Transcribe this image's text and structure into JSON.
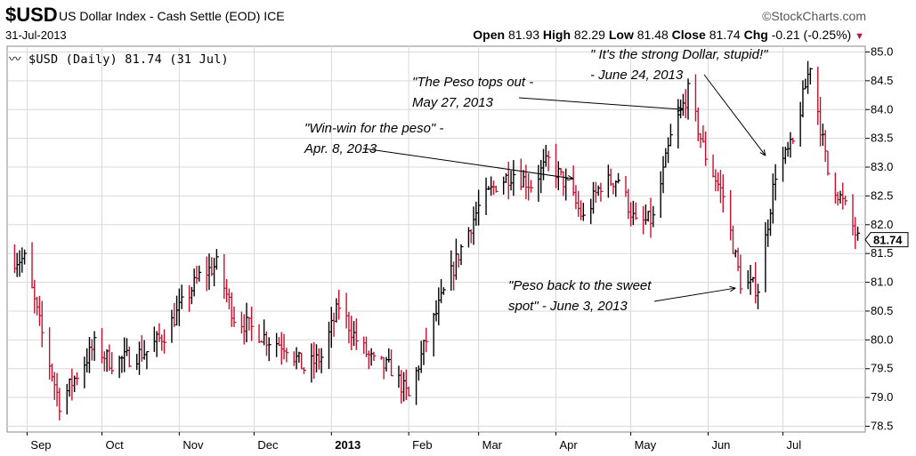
{
  "header": {
    "symbol": "$USD",
    "instrument": "US Dollar Index - Cash Settle (EOD)",
    "exchange": "ICE",
    "brand": "©StockCharts.com",
    "date": "31-Jul-2013",
    "open_label": "Open",
    "open": "81.93",
    "high_label": "High",
    "high": "82.29",
    "low_label": "Low",
    "low": "81.48",
    "close_label": "Close",
    "close": "81.74",
    "chg_label": "Chg",
    "chg": "-0.21 (-0.25%)"
  },
  "legend": "$USD (Daily) 81.74 (31 Jul)",
  "colors": {
    "up": "#000000",
    "down": "#c8102e",
    "grid": "#d9d9d9",
    "last_box": "#ffffff"
  },
  "chart_data": {
    "type": "line",
    "subtype": "hlc-bars",
    "ylim": [
      78.4,
      85.1
    ],
    "y_ticks": [
      "78.5",
      "79.0",
      "79.5",
      "80.0",
      "80.5",
      "81.0",
      "81.5",
      "82.0",
      "82.5",
      "83.0",
      "83.5",
      "84.0",
      "84.5",
      "85.0"
    ],
    "x_ticks": [
      "Sep",
      "Oct",
      "Nov",
      "Dec",
      "2013",
      "Feb",
      "Mar",
      "Apr",
      "May",
      "Jun",
      "Jul"
    ],
    "last_value": "81.74",
    "grid": true,
    "series": [
      {
        "name": "$USD",
        "x": [
          "2012-08-31",
          "2012-09-07",
          "2012-09-14",
          "2012-09-21",
          "2012-09-28",
          "2012-10-05",
          "2012-10-12",
          "2012-10-19",
          "2012-10-26",
          "2012-11-02",
          "2012-11-09",
          "2012-11-16",
          "2012-11-23",
          "2012-11-30",
          "2012-12-07",
          "2012-12-14",
          "2012-12-21",
          "2012-12-28",
          "2013-01-04",
          "2013-01-11",
          "2013-01-18",
          "2013-01-25",
          "2013-02-01",
          "2013-02-08",
          "2013-02-15",
          "2013-02-22",
          "2013-03-01",
          "2013-03-08",
          "2013-03-15",
          "2013-03-22",
          "2013-03-29",
          "2013-04-05",
          "2013-04-12",
          "2013-04-19",
          "2013-04-26",
          "2013-05-03",
          "2013-05-10",
          "2013-05-17",
          "2013-05-24",
          "2013-05-31",
          "2013-06-07",
          "2013-06-14",
          "2013-06-21",
          "2013-06-28",
          "2013-07-05",
          "2013-07-12",
          "2013-07-19",
          "2013-07-26",
          "2013-07-31"
        ],
        "values": [
          81.4,
          80.1,
          78.9,
          79.4,
          79.9,
          79.6,
          79.7,
          79.8,
          80.1,
          80.6,
          81.1,
          81.3,
          80.4,
          80.2,
          80.0,
          79.9,
          79.5,
          79.7,
          80.6,
          80.0,
          79.6,
          79.5,
          79.0,
          80.0,
          80.8,
          81.6,
          82.3,
          82.7,
          82.9,
          82.7,
          83.1,
          82.7,
          82.1,
          82.7,
          82.8,
          82.0,
          82.1,
          83.5,
          84.3,
          83.2,
          82.5,
          81.0,
          80.9,
          82.9,
          83.4,
          84.8,
          82.9,
          82.3,
          81.74
        ]
      }
    ],
    "annotations": [
      {
        "text": "\"Win-win for the peso\" -",
        "text2": "Apr. 8, 2013",
        "date": "2013-04-08",
        "value": 82.8
      },
      {
        "text": "\"The Peso tops out -",
        "text2": "May 27, 2013",
        "date": "2013-05-22",
        "value": 84.0
      },
      {
        "text": "\" It's the strong Dollar, stupid!\"",
        "text2": "- June 24, 2013",
        "date": "2013-06-24",
        "value": 83.2
      },
      {
        "text": "\"Peso back to the sweet",
        "text2": "spot\" - June 3, 2013",
        "date": "2013-06-12",
        "value": 80.9
      }
    ]
  }
}
